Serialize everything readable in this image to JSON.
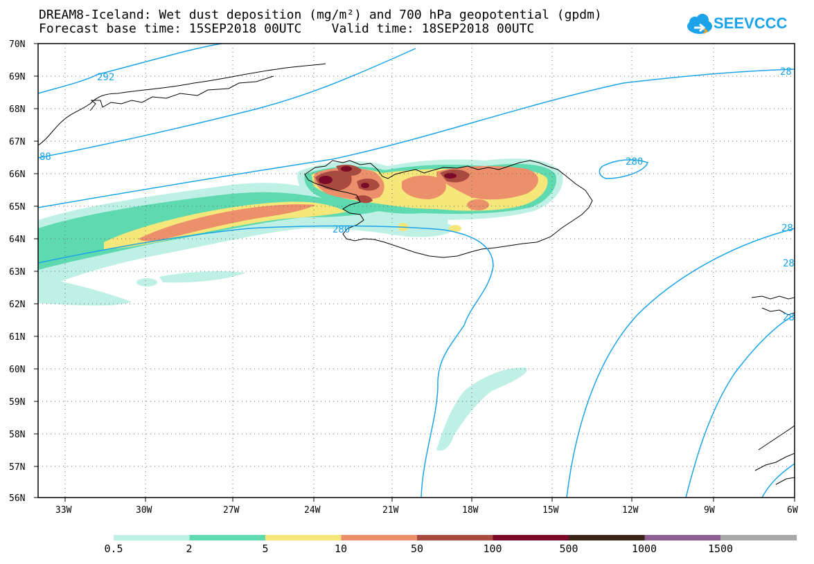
{
  "header": {
    "title_line1": "DREAM8-Iceland: Wet dust deposition (mg/m²) and 700 hPa geopotential (gpdm)",
    "title_line2": "Forecast base time: 15SEP2018 00UTC    Valid time: 18SEP2018 00UTC",
    "logo_text": "SEEVCCC"
  },
  "map": {
    "latitude_labels": [
      "70N",
      "69N",
      "68N",
      "67N",
      "66N",
      "65N",
      "64N",
      "63N",
      "62N",
      "61N",
      "60N",
      "59N",
      "58N",
      "57N",
      "56N"
    ],
    "longitude_labels": [
      "33W",
      "30W",
      "27W",
      "24W",
      "21W",
      "18W",
      "15W",
      "12W",
      "9W",
      "6W"
    ],
    "contour_labels": [
      {
        "text": "292"
      },
      {
        "text": "88"
      },
      {
        "text": "28"
      },
      {
        "text": "280"
      },
      {
        "text": "280"
      },
      {
        "text": "28"
      },
      {
        "text": "28"
      },
      {
        "text": "28"
      }
    ],
    "colors": {
      "coast": "#000000",
      "contour": "#1aa3e8"
    }
  },
  "legend": {
    "labels": [
      "0.5",
      "2",
      "5",
      "10",
      "50",
      "100",
      "500",
      "1000",
      "1500"
    ],
    "colors": [
      "#bff0e6",
      "#5fd9b0",
      "#f5e77a",
      "#ec8f6b",
      "#a84a3f",
      "#7a0a28",
      "#3a2418",
      "#8f5f94",
      "#a8a8a8"
    ]
  }
}
